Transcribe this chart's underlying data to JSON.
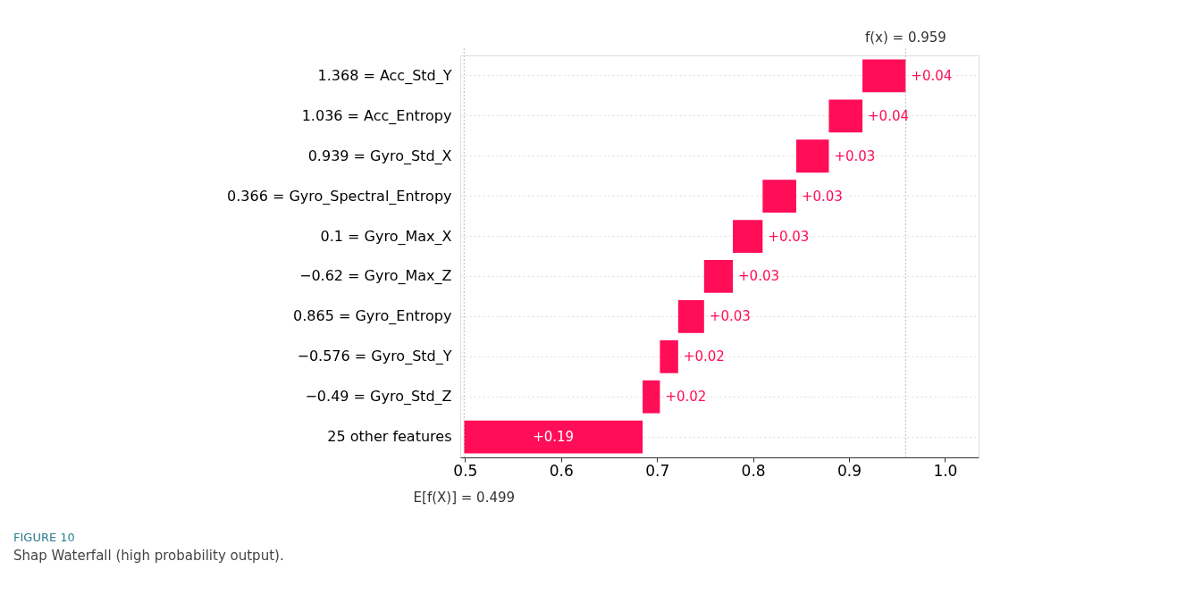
{
  "chart_data": {
    "type": "bar",
    "orientation": "horizontal",
    "categories": [
      "1.368 = Acc_Std_Y",
      "1.036 = Acc_Entropy",
      "0.939 = Gyro_Std_X",
      "0.366 = Gyro_Spectral_Entropy",
      "0.1 = Gyro_Max_X",
      "−0.62 = Gyro_Max_Z",
      "0.865 = Gyro_Entropy",
      "−0.576 = Gyro_Std_Y",
      "−0.49 = Gyro_Std_Z",
      "25 other features"
    ],
    "base": [
      0.914,
      0.879,
      0.845,
      0.81,
      0.779,
      0.749,
      0.722,
      0.703,
      0.685,
      0.499
    ],
    "values": [
      0.045,
      0.035,
      0.034,
      0.035,
      0.031,
      0.03,
      0.027,
      0.019,
      0.018,
      0.186
    ],
    "value_labels": [
      "+0.04",
      "+0.04",
      "+0.03",
      "+0.03",
      "+0.03",
      "+0.03",
      "+0.03",
      "+0.02",
      "+0.02",
      "+0.19"
    ],
    "color": "#ff0d57",
    "xlim": [
      0.495,
      1.035
    ],
    "xticks": [
      0.5,
      0.6,
      0.7,
      0.8,
      0.9,
      {
        "value": 1.0,
        "label": "1.0"
      }
    ],
    "grid": "y",
    "ref_lines": [
      {
        "axis": "x",
        "value": 0.959,
        "label": "f(x) = 0.959",
        "color": "#bbbbbb",
        "line_style": "dotted"
      },
      {
        "axis": "x",
        "value": 0.499,
        "label": "E[f(X)] = 0.499",
        "color": "#bbbbbb",
        "line_style": "dotted"
      }
    ],
    "annotations": [
      "FIGURE 10",
      "Shap Waterfall (high probability output)."
    ]
  }
}
